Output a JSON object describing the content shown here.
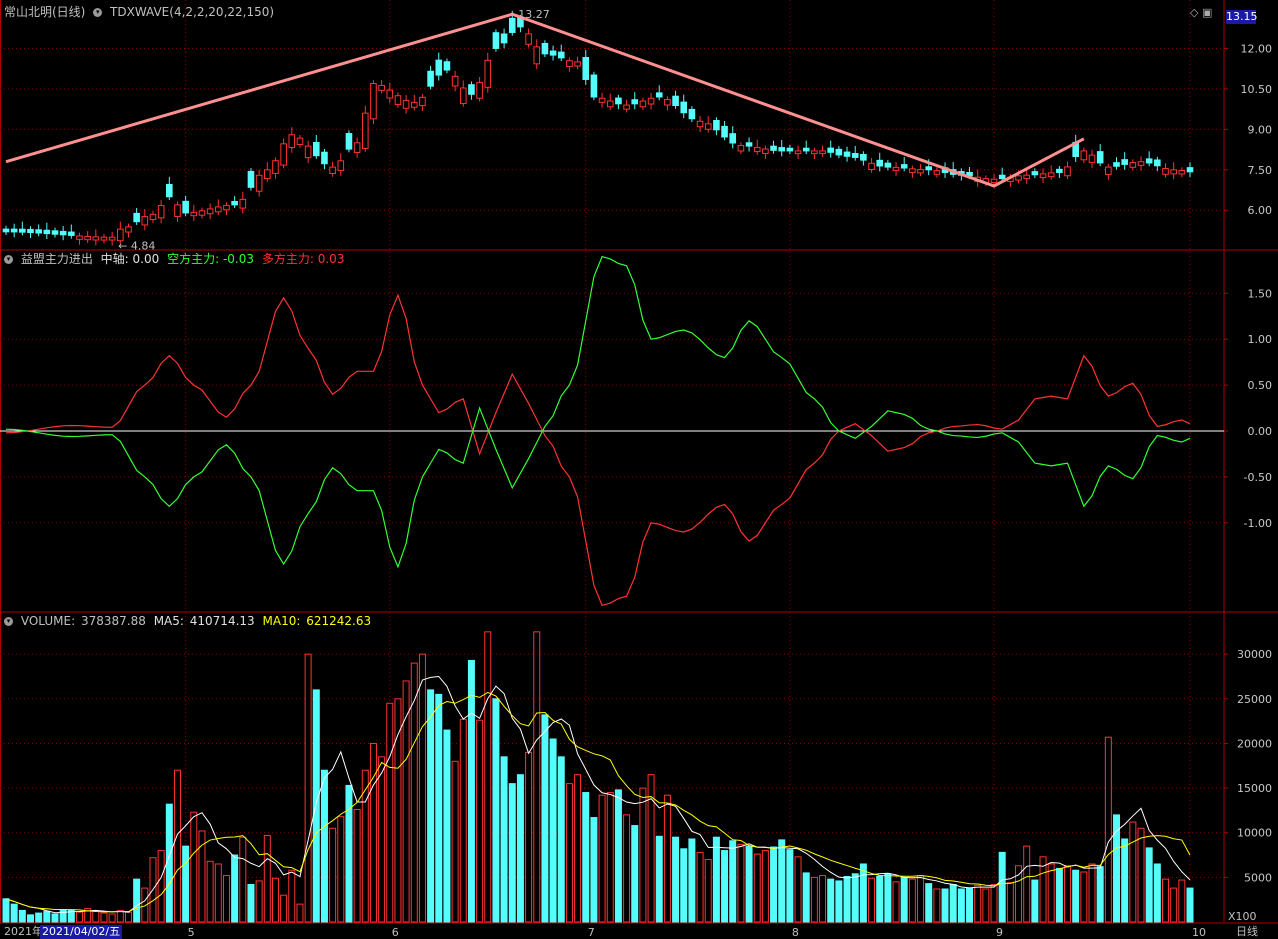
{
  "main_panel": {
    "stock_name": "常山北明(日线)",
    "indicator": "TDXWAVE(4,2,2,20,22,150)",
    "last_price": "13.15",
    "high_label": "13.27",
    "low_label": "4.84"
  },
  "ind_panel": {
    "name": "益盟主力进出",
    "axis_label": "中轴:",
    "axis_value": "0.00",
    "short_label": "空方主力:",
    "short_value": "-0.03",
    "long_label": "多方主力:",
    "long_value": "0.03"
  },
  "vol_panel": {
    "name": "VOLUME:",
    "value": "378387.88",
    "ma5_label": "MA5:",
    "ma5_value": "410714.13",
    "ma10_label": "MA10:",
    "ma10_value": "621242.63",
    "unit": "X100"
  },
  "bottom": {
    "year_label": "2021年",
    "cursor_date": "2021/04/02/五",
    "period": "日线"
  },
  "colors": {
    "up": "#ff3232",
    "down": "#54fcfc",
    "wave": "#ff9090",
    "ma5": "#ffffff",
    "ma10": "#ffff00",
    "long": "#ff3232",
    "short": "#32ff32",
    "grid": "#8b0000",
    "border": "#b00000"
  },
  "chart_data": [
    {
      "type": "candlestick",
      "title": "常山北明(日线)",
      "yticks": [
        6.0,
        7.5,
        9.0,
        10.5,
        12.0
      ],
      "ylim": [
        4.6,
        13.5
      ],
      "months": [
        {
          "label": "5",
          "index": 22
        },
        {
          "label": "6",
          "index": 47
        },
        {
          "label": "7",
          "index": 71
        },
        {
          "label": "8",
          "index": 96
        },
        {
          "label": "9",
          "index": 121
        },
        {
          "label": "10",
          "index": 145
        }
      ],
      "series": [
        {
          "name": "price",
          "anchors": [
            [
              0,
              5.2
            ],
            [
              13,
              5.0
            ],
            [
              14,
              5.3
            ],
            [
              18,
              5.85
            ],
            [
              20,
              6.5
            ],
            [
              22,
              5.9
            ],
            [
              28,
              6.2
            ],
            [
              32,
              7.5
            ],
            [
              35,
              8.8
            ],
            [
              40,
              7.6
            ],
            [
              43,
              8.5
            ],
            [
              45,
              10.7
            ],
            [
              50,
              10.0
            ],
            [
              54,
              11.2
            ],
            [
              57,
              10.3
            ],
            [
              60,
              12.0
            ],
            [
              63,
              12.8
            ],
            [
              66,
              11.8
            ],
            [
              70,
              11.5
            ],
            [
              72,
              10.2
            ],
            [
              76,
              9.9
            ],
            [
              80,
              10.2
            ],
            [
              85,
              9.3
            ],
            [
              90,
              8.4
            ],
            [
              95,
              8.2
            ],
            [
              100,
              8.2
            ],
            [
              103,
              8.0
            ],
            [
              108,
              7.6
            ],
            [
              113,
              7.5
            ],
            [
              117,
              7.3
            ],
            [
              121,
              7.15
            ],
            [
              125,
              7.3
            ],
            [
              129,
              7.4
            ],
            [
              132,
              8.2
            ],
            [
              135,
              7.6
            ],
            [
              139,
              7.8
            ],
            [
              143,
              7.5
            ],
            [
              146,
              7.4
            ]
          ]
        },
        {
          "name": "TDXWAVE",
          "points": [
            [
              0,
              7.8
            ],
            [
              62,
              13.27
            ],
            [
              121,
              6.9
            ],
            [
              132,
              8.65
            ]
          ]
        }
      ],
      "labels": [
        {
          "text": "13.27",
          "index": 62,
          "value": 13.27
        },
        {
          "text": "4.84",
          "index": 13,
          "value": 4.84
        }
      ]
    },
    {
      "type": "line",
      "title": "益盟主力进出",
      "yticks": [
        -1.0,
        -0.5,
        0.0,
        0.5,
        1.0,
        1.5
      ],
      "ylim": [
        -1.95,
        1.95
      ],
      "series": [
        {
          "name": "多方主力",
          "anchors": [
            [
              0,
              -0.02
            ],
            [
              8,
              0.06
            ],
            [
              13,
              0.04
            ],
            [
              17,
              0.5
            ],
            [
              20,
              0.82
            ],
            [
              23,
              0.5
            ],
            [
              27,
              0.15
            ],
            [
              30,
              0.5
            ],
            [
              34,
              1.45
            ],
            [
              37,
              0.9
            ],
            [
              40,
              0.4
            ],
            [
              43,
              0.65
            ],
            [
              45,
              0.65
            ],
            [
              48,
              1.48
            ],
            [
              51,
              0.5
            ],
            [
              53,
              0.2
            ],
            [
              56,
              0.35
            ],
            [
              58,
              -0.25
            ],
            [
              60,
              0.2
            ],
            [
              62,
              0.62
            ],
            [
              64,
              0.3
            ],
            [
              66,
              -0.05
            ],
            [
              69,
              -0.5
            ],
            [
              73,
              -1.9
            ],
            [
              76,
              -1.8
            ],
            [
              79,
              -1.0
            ],
            [
              83,
              -1.1
            ],
            [
              88,
              -0.8
            ],
            [
              91,
              -1.2
            ],
            [
              95,
              -0.8
            ],
            [
              99,
              -0.35
            ],
            [
              102,
              0.0
            ],
            [
              104,
              0.08
            ],
            [
              106,
              -0.05
            ],
            [
              108,
              -0.22
            ],
            [
              110,
              -0.18
            ],
            [
              113,
              -0.02
            ],
            [
              116,
              0.05
            ],
            [
              119,
              0.07
            ],
            [
              122,
              0.02
            ],
            [
              124,
              0.12
            ],
            [
              126,
              0.35
            ],
            [
              128,
              0.38
            ],
            [
              130,
              0.35
            ],
            [
              132,
              0.82
            ],
            [
              135,
              0.38
            ],
            [
              138,
              0.52
            ],
            [
              141,
              0.05
            ],
            [
              144,
              0.12
            ],
            [
              146,
              0.04
            ]
          ]
        },
        {
          "name": "空方主力",
          "anchors": [
            [
              0,
              0.02
            ],
            [
              8,
              -0.06
            ],
            [
              13,
              -0.04
            ],
            [
              17,
              -0.5
            ],
            [
              20,
              -0.82
            ],
            [
              23,
              -0.5
            ],
            [
              27,
              -0.15
            ],
            [
              30,
              -0.5
            ],
            [
              34,
              -1.45
            ],
            [
              37,
              -0.9
            ],
            [
              40,
              -0.4
            ],
            [
              43,
              -0.65
            ],
            [
              45,
              -0.65
            ],
            [
              48,
              -1.48
            ],
            [
              51,
              -0.5
            ],
            [
              53,
              -0.2
            ],
            [
              56,
              -0.35
            ],
            [
              58,
              0.25
            ],
            [
              60,
              -0.2
            ],
            [
              62,
              -0.62
            ],
            [
              64,
              -0.3
            ],
            [
              66,
              0.05
            ],
            [
              69,
              0.5
            ],
            [
              73,
              1.9
            ],
            [
              76,
              1.8
            ],
            [
              79,
              1.0
            ],
            [
              83,
              1.1
            ],
            [
              88,
              0.8
            ],
            [
              91,
              1.2
            ],
            [
              95,
              0.8
            ],
            [
              99,
              0.35
            ],
            [
              102,
              0.0
            ],
            [
              104,
              -0.08
            ],
            [
              106,
              0.05
            ],
            [
              108,
              0.22
            ],
            [
              110,
              0.18
            ],
            [
              113,
              0.02
            ],
            [
              116,
              -0.05
            ],
            [
              119,
              -0.07
            ],
            [
              122,
              -0.02
            ],
            [
              124,
              -0.12
            ],
            [
              126,
              -0.35
            ],
            [
              128,
              -0.38
            ],
            [
              130,
              -0.35
            ],
            [
              132,
              -0.82
            ],
            [
              135,
              -0.38
            ],
            [
              138,
              -0.52
            ],
            [
              141,
              -0.05
            ],
            [
              144,
              -0.12
            ],
            [
              146,
              -0.04
            ]
          ]
        },
        {
          "name": "中轴",
          "value": 0.0
        }
      ]
    },
    {
      "type": "bar",
      "title": "VOLUME",
      "yticks": [
        5000,
        10000,
        15000,
        20000,
        25000,
        30000
      ],
      "ylim": [
        0,
        34500
      ],
      "unit": "X100",
      "volumes": [
        2600,
        2000,
        1300,
        800,
        1000,
        1200,
        900,
        1400,
        1300,
        1100,
        1500,
        1200,
        1000,
        900,
        1300,
        1100,
        4800,
        3800,
        7200,
        8000,
        13200,
        17000,
        8500,
        12300,
        10200,
        6800,
        6500,
        5200,
        7500,
        9500,
        4200,
        4600,
        9700,
        4900,
        3000,
        5800,
        2000,
        30000,
        26000,
        17000,
        10500,
        11800,
        15300,
        12600,
        17000,
        20000,
        18500,
        24500,
        25000,
        27000,
        29000,
        30000,
        26000,
        25500,
        21500,
        18000,
        22700,
        29300,
        22600,
        32500,
        25000,
        18500,
        15500,
        16500,
        19000,
        32500,
        23200,
        20500,
        18500,
        15500,
        16500,
        14500,
        11700,
        14200,
        14500,
        14800,
        12000,
        10800,
        15000,
        16500,
        9600,
        14200,
        9500,
        8200,
        9300,
        7800,
        7000,
        9500,
        8000,
        9100,
        8700,
        8500,
        7600,
        8000,
        8400,
        9200,
        8100,
        7300,
        5500,
        5000,
        5200,
        4800,
        4600,
        5100,
        5400,
        6500,
        4900,
        5100,
        5400,
        4500,
        5000,
        4800,
        5200,
        4300,
        3700,
        3700,
        4200,
        3700,
        3800,
        4100,
        3700,
        4200,
        7800,
        4400,
        6300,
        8500,
        4700,
        7300,
        6500,
        6000,
        6300,
        5800,
        5600,
        6500,
        6200,
        20700,
        12000,
        9300,
        11200,
        10500,
        8300,
        6500,
        4800,
        3800,
        4700,
        3800
      ],
      "up_flags": [
        0,
        0,
        0,
        0,
        0,
        0,
        0,
        0,
        0,
        1,
        1,
        1,
        1,
        1,
        1,
        1,
        0,
        1,
        1,
        1,
        0,
        1,
        0,
        1,
        1,
        1,
        1,
        1,
        0,
        1,
        0,
        1,
        1,
        1,
        1,
        1,
        1,
        1,
        0,
        0,
        1,
        1,
        0,
        1,
        1,
        1,
        1,
        1,
        1,
        1,
        1,
        1,
        0,
        0,
        0,
        1,
        1,
        0,
        1,
        1,
        0,
        0,
        0,
        0,
        1,
        1,
        0,
        0,
        0,
        1,
        1,
        0,
        0,
        1,
        1,
        0,
        1,
        0,
        1,
        1,
        0,
        1,
        0,
        0,
        0,
        1,
        1,
        0,
        0,
        0,
        1,
        0,
        1,
        1,
        0,
        0,
        0,
        1,
        0,
        1,
        1,
        0,
        0,
        0,
        0,
        0,
        1,
        0,
        0,
        1,
        0,
        1,
        1,
        0,
        1,
        0,
        0,
        0,
        0,
        1,
        1,
        1,
        0,
        1,
        1,
        1,
        0,
        1,
        1,
        0,
        1,
        0,
        1,
        1,
        0,
        1,
        0,
        0,
        1,
        1,
        0,
        0,
        1,
        1,
        1,
        0
      ]
    }
  ]
}
